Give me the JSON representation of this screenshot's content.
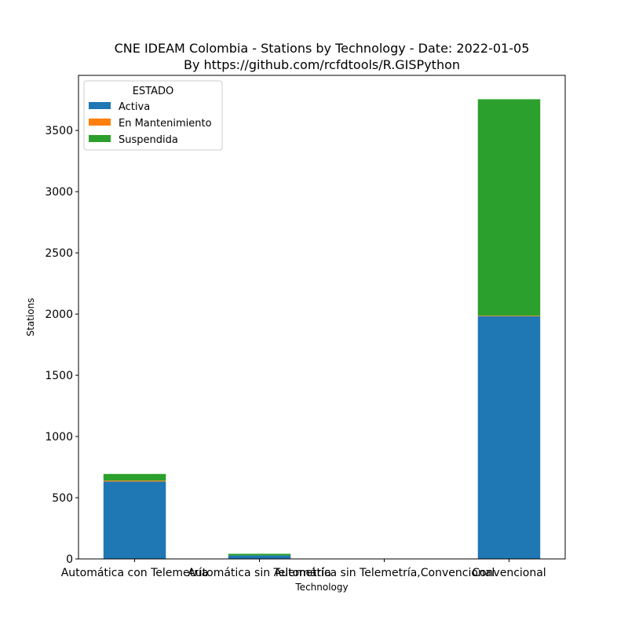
{
  "chart_data": {
    "type": "bar",
    "stacked": true,
    "title": "CNE IDEAM Colombia -  Stations by Technology - Date: 2022-01-05",
    "subtitle": "By https://github.com/rcfdtools/R.GISPython",
    "xlabel": "Technology",
    "ylabel": "Stations",
    "categories": [
      "Automática con Telemetría",
      "Automática sin Telemetría",
      "Automática sin Telemetría,Convencional",
      "Convencional"
    ],
    "series": [
      {
        "name": "Activa",
        "color": "#1f77b4",
        "values": [
          632,
          28,
          0,
          1982
        ]
      },
      {
        "name": "En Mantenimiento",
        "color": "#ff7f0e",
        "values": [
          8,
          0,
          0,
          5
        ]
      },
      {
        "name": "Suspendida",
        "color": "#2ca02c",
        "values": [
          54,
          14,
          1,
          1768
        ]
      }
    ],
    "ylim": [
      0,
      3950
    ],
    "yticks": [
      0,
      500,
      1000,
      1500,
      2000,
      2500,
      3000,
      3500
    ],
    "legend": {
      "title": "ESTADO",
      "position": "top-left"
    },
    "grid": false
  }
}
